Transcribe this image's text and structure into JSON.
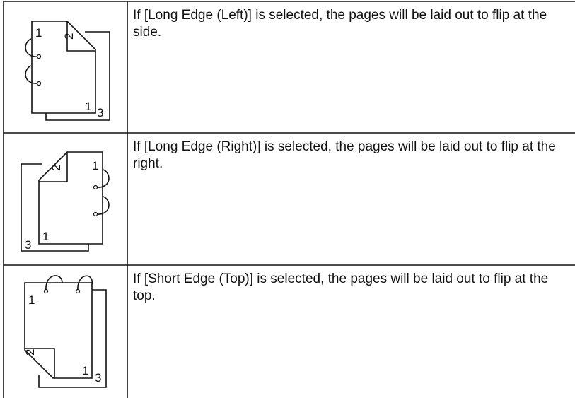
{
  "table": {
    "rows": [
      {
        "icon_labels": [
          "1",
          "2",
          "1",
          "3"
        ],
        "text": "If [Long Edge (Left)] is selected, the pages will be laid out to flip at the side."
      },
      {
        "icon_labels": [
          "1",
          "2",
          "3",
          "1"
        ],
        "text": "If [Long Edge (Right)] is selected, the pages will be laid out to flip at the right."
      },
      {
        "icon_labels": [
          "1",
          "2",
          "1",
          "3"
        ],
        "text": "If [Short Edge (Top)] is selected, the pages will be laid out to flip at the top."
      }
    ]
  }
}
